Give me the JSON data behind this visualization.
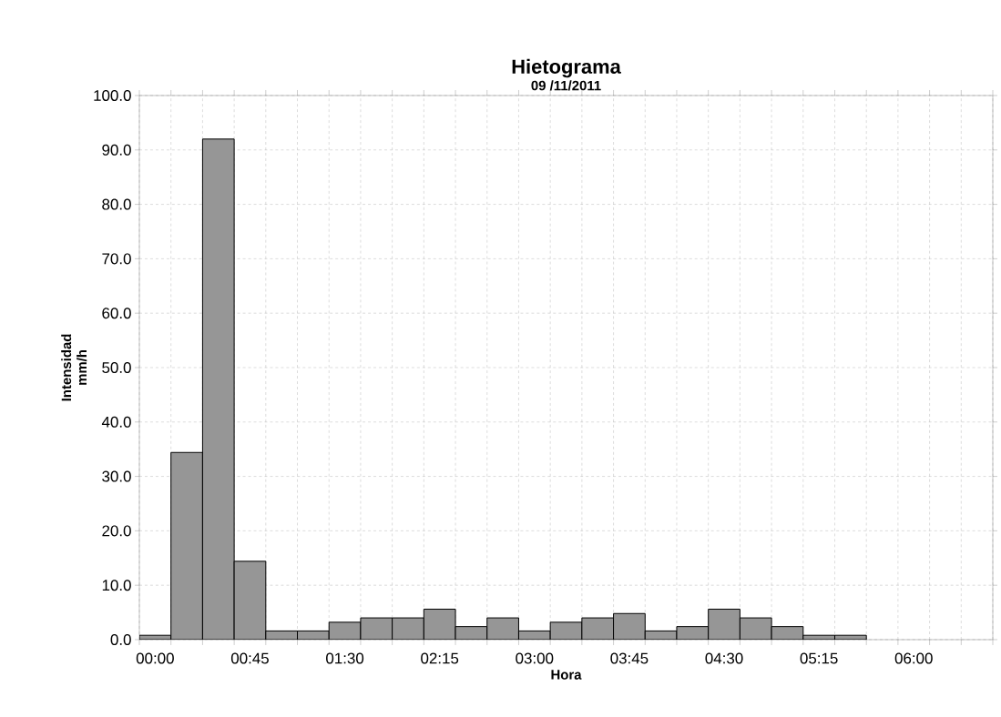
{
  "chart_data": {
    "type": "bar",
    "title": "Hietograma",
    "subtitle": "09 /11/2011",
    "xlabel": "Hora",
    "ylabel": "Intensidad mm/h",
    "categories": [
      "00:00",
      null,
      null,
      "00:45",
      null,
      null,
      "01:30",
      null,
      null,
      "02:15",
      null,
      null,
      "03:00",
      null,
      null,
      "03:45",
      null,
      null,
      "04:30",
      null,
      null,
      "05:15",
      null,
      null,
      "06:00",
      null,
      null
    ],
    "values": [
      0.8,
      34.4,
      92.0,
      14.4,
      1.6,
      1.6,
      3.2,
      4.0,
      4.0,
      5.6,
      2.4,
      4.0,
      1.6,
      3.2,
      4.0,
      4.8,
      1.6,
      2.4,
      5.6,
      4.0,
      2.4,
      0.8,
      0.8,
      null,
      null,
      null,
      null
    ],
    "color": "#969696",
    "ylim": [
      0,
      100
    ],
    "yticks": [
      {
        "value": 0,
        "label": "0.0"
      },
      {
        "value": 10,
        "label": "10.0"
      },
      {
        "value": 20,
        "label": "20.0"
      },
      {
        "value": 30,
        "label": "30.0"
      },
      {
        "value": 40,
        "label": "40.0"
      },
      {
        "value": 50,
        "label": "50.0"
      },
      {
        "value": 60,
        "label": "60.0"
      },
      {
        "value": 70,
        "label": "70.0"
      },
      {
        "value": 80,
        "label": "80.0"
      },
      {
        "value": 90,
        "label": "90.0"
      },
      {
        "value": 100,
        "label": "100.0"
      }
    ],
    "grid": true
  }
}
